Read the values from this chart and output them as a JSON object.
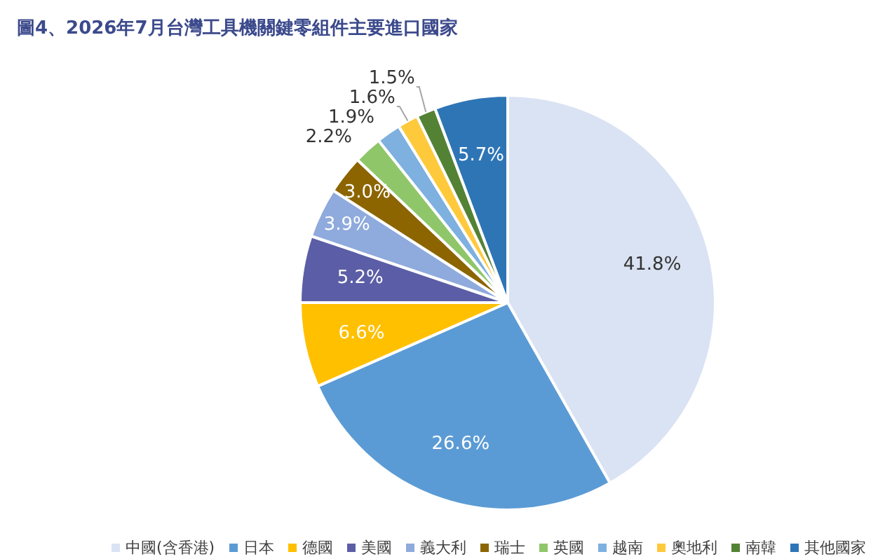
{
  "chart_data": {
    "type": "pie",
    "title": "圖4、2026年7月台灣工具機關鍵零組件主要進口國家",
    "categories": [
      "中國(含香港)",
      "日本",
      "德國",
      "美國",
      "義大利",
      "瑞士",
      "英國",
      "越南",
      "奧地利",
      "南韓",
      "其他國家"
    ],
    "values": [
      41.8,
      26.6,
      6.6,
      5.2,
      3.9,
      3.0,
      2.2,
      1.9,
      1.6,
      1.5,
      5.7
    ],
    "colors": [
      "#dae3f3",
      "#5b9bd5",
      "#ffc000",
      "#5b5ea6",
      "#8faadc",
      "#8c6500",
      "#8fc66a",
      "#7eb0e0",
      "#ffc93c",
      "#548235",
      "#2e75b6"
    ],
    "value_labels": [
      "41.8%",
      "26.6%",
      "6.6%",
      "5.2%",
      "3.9%",
      "3.0%",
      "2.2%",
      "1.9%",
      "1.6%",
      "1.5%",
      "5.7%"
    ],
    "legend": "bottom"
  }
}
